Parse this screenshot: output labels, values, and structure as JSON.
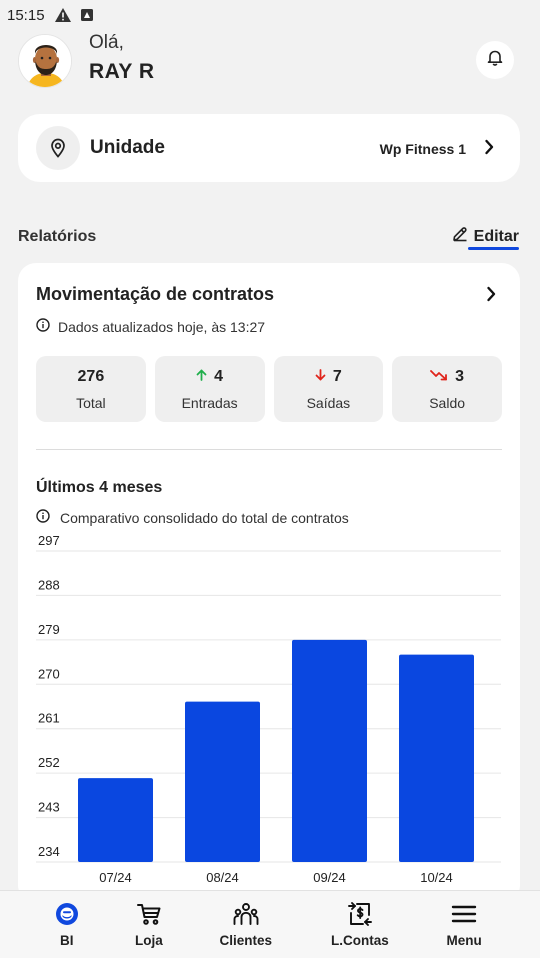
{
  "status_bar": {
    "time": "15:15"
  },
  "header": {
    "greeting": "Olá,",
    "username": "RAY R"
  },
  "unit": {
    "label": "Unidade",
    "value": "Wp Fitness 1"
  },
  "reports": {
    "title": "Relatórios",
    "edit_label": "Editar"
  },
  "report_card": {
    "title": "Movimentação de contratos",
    "info": "Dados atualizados hoje, às 13:27",
    "stats": [
      {
        "value": "276",
        "label": "Total"
      },
      {
        "value": "4",
        "label": "Entradas",
        "icon": "arrow-up-icon",
        "color": "#1fae4b"
      },
      {
        "value": "7",
        "label": "Saídas",
        "icon": "arrow-down-icon",
        "color": "#e0241b"
      },
      {
        "value": "3",
        "label": "Saldo",
        "icon": "trend-down-icon",
        "color": "#e0241b"
      }
    ],
    "months_title": "Últimos 4 meses",
    "months_info": "Comparativo consolidado do total de contratos"
  },
  "chart_data": {
    "type": "bar",
    "categories": [
      "07/24",
      "08/24",
      "09/24",
      "10/24"
    ],
    "values": [
      251,
      266.5,
      279,
      276
    ],
    "y_ticks": [
      234,
      243,
      252,
      261,
      270,
      279,
      288,
      297
    ],
    "ylim": [
      234,
      297
    ],
    "color": "#0a47e0",
    "grid": true
  },
  "bottom_nav": [
    {
      "label": "BI",
      "icon": "bi-logo-icon",
      "active": true
    },
    {
      "label": "Loja",
      "icon": "cart-icon"
    },
    {
      "label": "Clientes",
      "icon": "people-icon"
    },
    {
      "label": "L.Contas",
      "icon": "money-transfer-icon"
    },
    {
      "label": "Menu",
      "icon": "menu-icon"
    }
  ],
  "colors": {
    "accent": "#1048de",
    "background": "#f2f2f2"
  }
}
